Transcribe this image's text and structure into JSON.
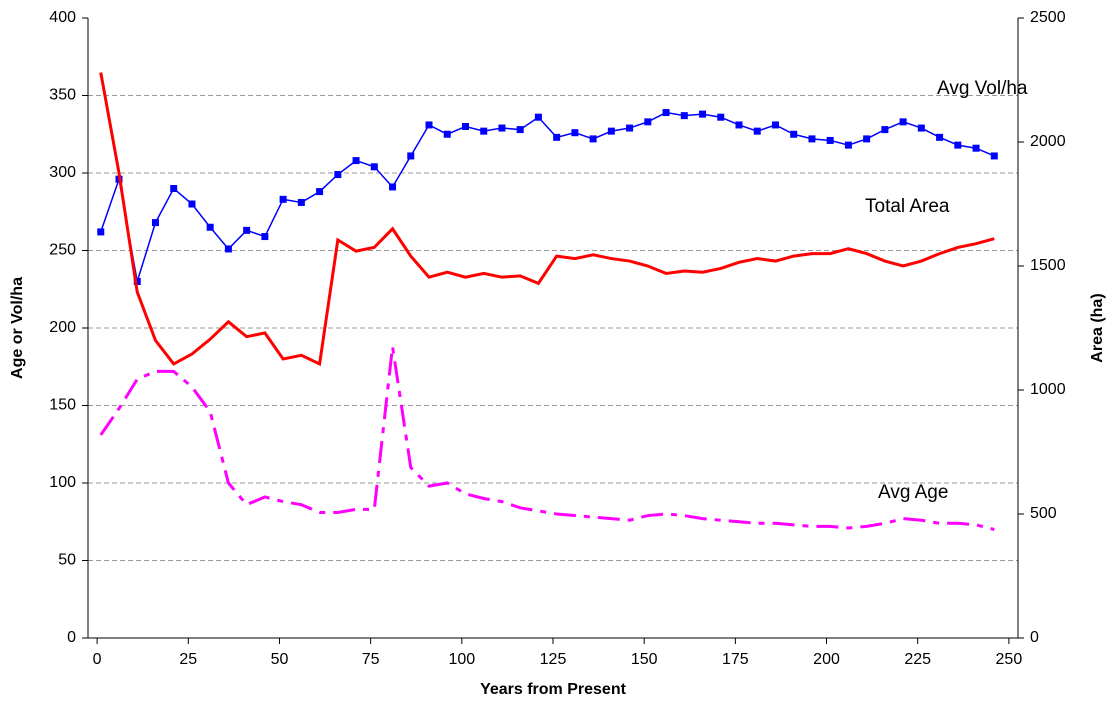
{
  "chart_data": {
    "type": "line",
    "x_label": "Years from Present",
    "y_label": "Age or Vol/ha",
    "y2_label": "Area (ha)",
    "annotations": [
      "Avg Vol/ha",
      "Total Area",
      "Avg Age"
    ],
    "x": [
      1,
      6,
      11,
      16,
      21,
      26,
      31,
      36,
      41,
      46,
      51,
      56,
      61,
      66,
      71,
      76,
      81,
      86,
      91,
      96,
      101,
      106,
      111,
      116,
      121,
      126,
      131,
      136,
      141,
      146,
      151,
      156,
      161,
      166,
      171,
      176,
      181,
      186,
      191,
      196,
      201,
      206,
      211,
      216,
      221,
      226,
      231,
      236,
      241,
      246
    ],
    "series": [
      {
        "name": "Avg Vol/ha",
        "color": "#0000ff",
        "marker": "square",
        "linestyle": "solid",
        "axis": "y",
        "values": [
          262,
          296,
          230,
          268,
          290,
          280,
          265,
          251,
          263,
          259,
          283,
          281,
          288,
          299,
          308,
          304,
          291,
          311,
          331,
          325,
          330,
          327,
          329,
          328,
          336,
          323,
          326,
          322,
          327,
          329,
          333,
          339,
          337,
          338,
          336,
          331,
          327,
          331,
          325,
          322,
          321,
          318,
          322,
          328,
          333,
          329,
          323,
          318,
          316,
          311
        ]
      },
      {
        "name": "Total Area",
        "color": "#ff0000",
        "marker": "none",
        "linestyle": "solid",
        "axis": "y2",
        "values": [
          2280,
          1875,
          1395,
          1200,
          1105,
          1145,
          1205,
          1275,
          1215,
          1230,
          1125,
          1140,
          1105,
          1605,
          1560,
          1575,
          1650,
          1540,
          1455,
          1475,
          1455,
          1470,
          1455,
          1460,
          1430,
          1540,
          1530,
          1545,
          1530,
          1520,
          1500,
          1470,
          1480,
          1475,
          1490,
          1515,
          1530,
          1520,
          1540,
          1550,
          1550,
          1570,
          1550,
          1520,
          1500,
          1520,
          1550,
          1575,
          1590,
          1610
        ]
      },
      {
        "name": "Avg Age",
        "color": "#ff00ff",
        "marker": "none",
        "linestyle": "dashdot",
        "axis": "y",
        "values": [
          131,
          148,
          167,
          172,
          172,
          162,
          146,
          100,
          86,
          91,
          88,
          86,
          81,
          81,
          83,
          83,
          188,
          110,
          98,
          100,
          93,
          90,
          88,
          84,
          82,
          80,
          79,
          78,
          77,
          76,
          79,
          80,
          79,
          77,
          76,
          75,
          74,
          74,
          73,
          72,
          72,
          71,
          72,
          74,
          77,
          76,
          74,
          74,
          73,
          70
        ]
      }
    ],
    "xlim": [
      -2.5,
      252.5
    ],
    "xticks": [
      0,
      25,
      50,
      75,
      100,
      125,
      150,
      175,
      200,
      225,
      250
    ],
    "ylim": [
      0,
      400
    ],
    "yticks": [
      0,
      50,
      100,
      150,
      200,
      250,
      300,
      350,
      400
    ],
    "y2lim": [
      0,
      2500
    ],
    "y2ticks": [
      0,
      500,
      1000,
      1500,
      2000,
      2500
    ],
    "grid": true
  }
}
